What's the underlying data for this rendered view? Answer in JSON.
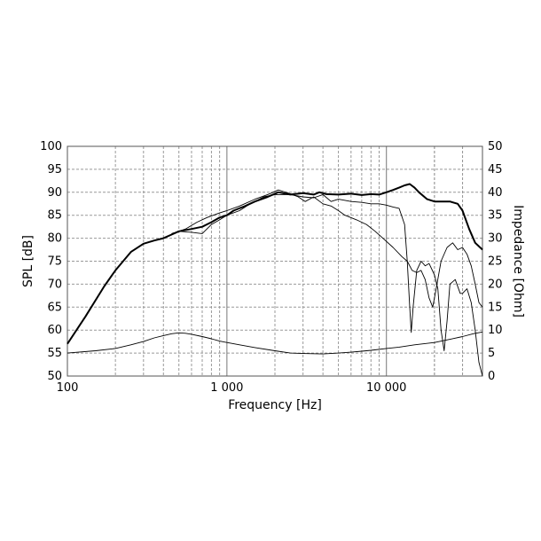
{
  "chart_data": {
    "type": "line",
    "xlabel": "Frequency [Hz]",
    "ylabel": "SPL [dB]",
    "y2label": "Impedance [Ohm]",
    "x_scale": "log",
    "xlim": [
      100,
      40000
    ],
    "ylim": [
      50,
      100
    ],
    "y2lim": [
      0,
      50
    ],
    "grid": true,
    "x_ticks": [
      {
        "value": 100,
        "label": "100"
      },
      {
        "value": 1000,
        "label": "1 000"
      },
      {
        "value": 10000,
        "label": "10 000"
      }
    ],
    "y_ticks": [
      {
        "value": 50,
        "label": "50"
      },
      {
        "value": 55,
        "label": "55"
      },
      {
        "value": 60,
        "label": "60"
      },
      {
        "value": 65,
        "label": "65"
      },
      {
        "value": 70,
        "label": "70"
      },
      {
        "value": 75,
        "label": "75"
      },
      {
        "value": 80,
        "label": "80"
      },
      {
        "value": 85,
        "label": "85"
      },
      {
        "value": 90,
        "label": "90"
      },
      {
        "value": 95,
        "label": "95"
      },
      {
        "value": 100,
        "label": "100"
      }
    ],
    "y2_ticks": [
      {
        "value": 0,
        "label": "0"
      },
      {
        "value": 5,
        "label": "5"
      },
      {
        "value": 10,
        "label": "10"
      },
      {
        "value": 15,
        "label": "15"
      },
      {
        "value": 20,
        "label": "20"
      },
      {
        "value": 25,
        "label": "25"
      },
      {
        "value": 30,
        "label": "30"
      },
      {
        "value": 35,
        "label": "35"
      },
      {
        "value": 40,
        "label": "40"
      },
      {
        "value": 45,
        "label": "45"
      },
      {
        "value": 50,
        "label": "50"
      }
    ],
    "series": [
      {
        "axis": "left",
        "weight": "bold",
        "points": [
          [
            100,
            57
          ],
          [
            130,
            63
          ],
          [
            170,
            69.5
          ],
          [
            200,
            73
          ],
          [
            250,
            77
          ],
          [
            300,
            78.8
          ],
          [
            350,
            79.5
          ],
          [
            400,
            80
          ],
          [
            450,
            80.8
          ],
          [
            500,
            81.5
          ],
          [
            600,
            82
          ],
          [
            700,
            82.5
          ],
          [
            800,
            83.5
          ],
          [
            900,
            84.5
          ],
          [
            1000,
            85
          ],
          [
            1100,
            86
          ],
          [
            1300,
            87
          ],
          [
            1500,
            88
          ],
          [
            1800,
            89
          ],
          [
            2100,
            90
          ],
          [
            2500,
            89.5
          ],
          [
            3000,
            89.8
          ],
          [
            3500,
            89.5
          ],
          [
            3800,
            90
          ],
          [
            4200,
            89.6
          ],
          [
            5000,
            89.5
          ],
          [
            6000,
            89.7
          ],
          [
            7000,
            89.4
          ],
          [
            8000,
            89.6
          ],
          [
            9000,
            89.5
          ],
          [
            10000,
            90
          ],
          [
            11000,
            90.5
          ],
          [
            12000,
            91
          ],
          [
            13000,
            91.5
          ],
          [
            14000,
            91.8
          ],
          [
            15000,
            91
          ],
          [
            16000,
            90
          ],
          [
            18000,
            88.5
          ],
          [
            20000,
            88
          ],
          [
            25000,
            88
          ],
          [
            28000,
            87.5
          ],
          [
            30000,
            86
          ],
          [
            33000,
            82
          ],
          [
            36000,
            79
          ],
          [
            40000,
            77.5
          ]
        ]
      },
      {
        "axis": "left",
        "weight": "thin",
        "points": [
          [
            450,
            81
          ],
          [
            500,
            81.5
          ],
          [
            600,
            81.3
          ],
          [
            700,
            81
          ],
          [
            800,
            83
          ],
          [
            900,
            84
          ],
          [
            1000,
            85
          ],
          [
            1200,
            86
          ],
          [
            1400,
            87.5
          ],
          [
            1700,
            89
          ],
          [
            2000,
            89.5
          ],
          [
            2500,
            89.5
          ],
          [
            3000,
            89
          ],
          [
            3500,
            88.8
          ],
          [
            4000,
            89.5
          ],
          [
            4500,
            88
          ],
          [
            5000,
            88.5
          ],
          [
            6000,
            88
          ],
          [
            7000,
            87.8
          ],
          [
            8000,
            87.5
          ],
          [
            9000,
            87.5
          ],
          [
            10000,
            87.2
          ],
          [
            11000,
            86.8
          ],
          [
            12000,
            86.5
          ],
          [
            13000,
            83
          ],
          [
            13500,
            75
          ],
          [
            14000,
            65
          ],
          [
            14300,
            59.5
          ],
          [
            14700,
            65
          ],
          [
            15500,
            73
          ],
          [
            16500,
            75
          ],
          [
            17500,
            74
          ],
          [
            18500,
            74.5
          ],
          [
            20000,
            72
          ],
          [
            21000,
            69
          ],
          [
            22000,
            60
          ],
          [
            23000,
            55.5
          ],
          [
            24000,
            62
          ],
          [
            25000,
            70
          ],
          [
            27000,
            71
          ],
          [
            29000,
            68
          ],
          [
            30000,
            68
          ],
          [
            32000,
            69
          ],
          [
            34000,
            66
          ],
          [
            36000,
            60
          ],
          [
            38000,
            53
          ],
          [
            40000,
            50
          ]
        ]
      },
      {
        "axis": "left",
        "weight": "thin",
        "points": [
          [
            450,
            81
          ],
          [
            550,
            82
          ],
          [
            650,
            83.5
          ],
          [
            750,
            84.5
          ],
          [
            900,
            85.5
          ],
          [
            1000,
            86
          ],
          [
            1200,
            87
          ],
          [
            1500,
            88.5
          ],
          [
            1800,
            89.5
          ],
          [
            2100,
            90.5
          ],
          [
            2500,
            89.7
          ],
          [
            2800,
            89
          ],
          [
            3100,
            88
          ],
          [
            3500,
            89
          ],
          [
            4000,
            87.5
          ],
          [
            4500,
            87
          ],
          [
            5000,
            86
          ],
          [
            5500,
            85
          ],
          [
            6500,
            84
          ],
          [
            7500,
            83
          ],
          [
            8500,
            81.5
          ],
          [
            9500,
            80
          ],
          [
            11000,
            78
          ],
          [
            12500,
            76
          ],
          [
            13500,
            75
          ],
          [
            14500,
            73
          ],
          [
            15500,
            72.5
          ],
          [
            16500,
            73
          ],
          [
            17500,
            71
          ],
          [
            18500,
            67
          ],
          [
            19500,
            65
          ],
          [
            20500,
            69
          ],
          [
            22000,
            75
          ],
          [
            24000,
            78
          ],
          [
            26000,
            79
          ],
          [
            28000,
            77.5
          ],
          [
            30000,
            78
          ],
          [
            32000,
            76.5
          ],
          [
            34000,
            74
          ],
          [
            36000,
            70
          ],
          [
            38000,
            66
          ],
          [
            40000,
            65
          ]
        ]
      },
      {
        "axis": "right",
        "weight": "thin",
        "points": [
          [
            100,
            5
          ],
          [
            150,
            5.5
          ],
          [
            200,
            6
          ],
          [
            250,
            6.8
          ],
          [
            300,
            7.5
          ],
          [
            350,
            8.3
          ],
          [
            400,
            8.8
          ],
          [
            450,
            9.2
          ],
          [
            500,
            9.4
          ],
          [
            550,
            9.3
          ],
          [
            600,
            9.1
          ],
          [
            700,
            8.6
          ],
          [
            800,
            8.1
          ],
          [
            900,
            7.6
          ],
          [
            1000,
            7.3
          ],
          [
            1200,
            6.8
          ],
          [
            1500,
            6.2
          ],
          [
            2000,
            5.5
          ],
          [
            2500,
            5.0
          ],
          [
            3000,
            4.9
          ],
          [
            4000,
            4.8
          ],
          [
            5000,
            5.0
          ],
          [
            6000,
            5.2
          ],
          [
            7000,
            5.4
          ],
          [
            8000,
            5.6
          ],
          [
            10000,
            6.0
          ],
          [
            12000,
            6.3
          ],
          [
            15000,
            6.8
          ],
          [
            20000,
            7.3
          ],
          [
            25000,
            8.0
          ],
          [
            30000,
            8.6
          ],
          [
            35000,
            9.2
          ],
          [
            40000,
            9.6
          ]
        ]
      }
    ]
  }
}
